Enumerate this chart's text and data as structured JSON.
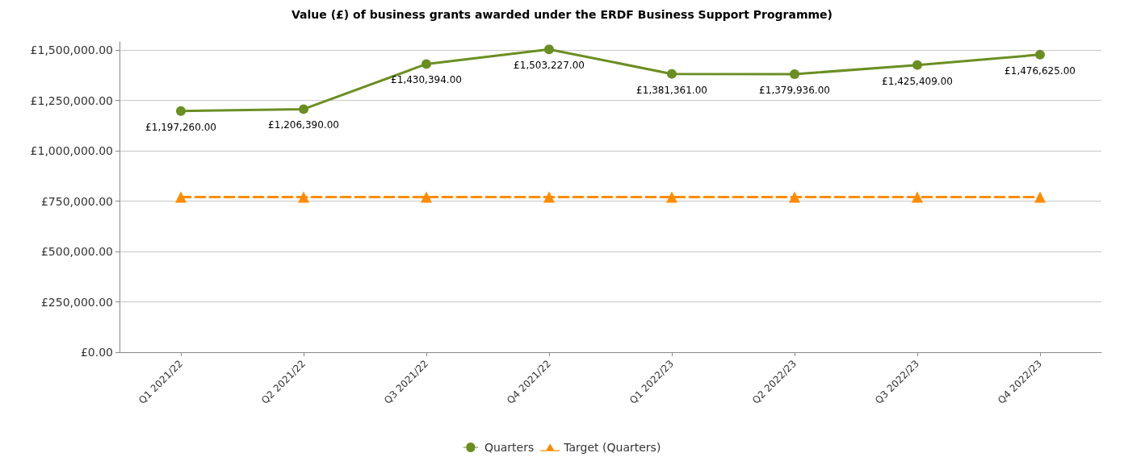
{
  "chart_data": {
    "type": "line",
    "title": "Value (£) of business grants awarded under the ERDF Business Support Programme)",
    "categories": [
      "Q1 2021/22",
      "Q2 2021/22",
      "Q3 2021/22",
      "Q4 2021/22",
      "Q1 2022/23",
      "Q2 2022/23",
      "Q3 2022/23",
      "Q4 2022/23"
    ],
    "series": [
      {
        "name": "Quarters",
        "color": "#6b8e23",
        "marker": "circle",
        "line_style": "solid",
        "values": [
          1197260,
          1206390,
          1430394,
          1503227,
          1381361,
          1379936,
          1425409,
          1476625
        ],
        "value_labels": [
          "£1,197,260.00",
          "£1,206,390.00",
          "£1,430,394.00",
          "£1,503,227.00",
          "£1,381,361.00",
          "£1,379,936.00",
          "£1,425,409.00",
          "£1,476,625.00"
        ]
      },
      {
        "name": "Target (Quarters)",
        "color": "#ff8c00",
        "marker": "triangle",
        "line_style": "dashed",
        "values": [
          770000,
          770000,
          770000,
          770000,
          770000,
          770000,
          770000,
          770000
        ]
      }
    ],
    "ylim": [
      0,
      1540000
    ],
    "yticks": [
      {
        "value": 0,
        "label": "£0.00"
      },
      {
        "value": 250000,
        "label": "£250,000.00"
      },
      {
        "value": 500000,
        "label": "£500,000.00"
      },
      {
        "value": 750000,
        "label": "£750,000.00"
      },
      {
        "value": 1000000,
        "label": "£1,000,000.00"
      },
      {
        "value": 1250000,
        "label": "£1,250,000.00"
      },
      {
        "value": 1500000,
        "label": "£1,500,000.00"
      }
    ],
    "grid": "y",
    "legend": "bottom"
  }
}
